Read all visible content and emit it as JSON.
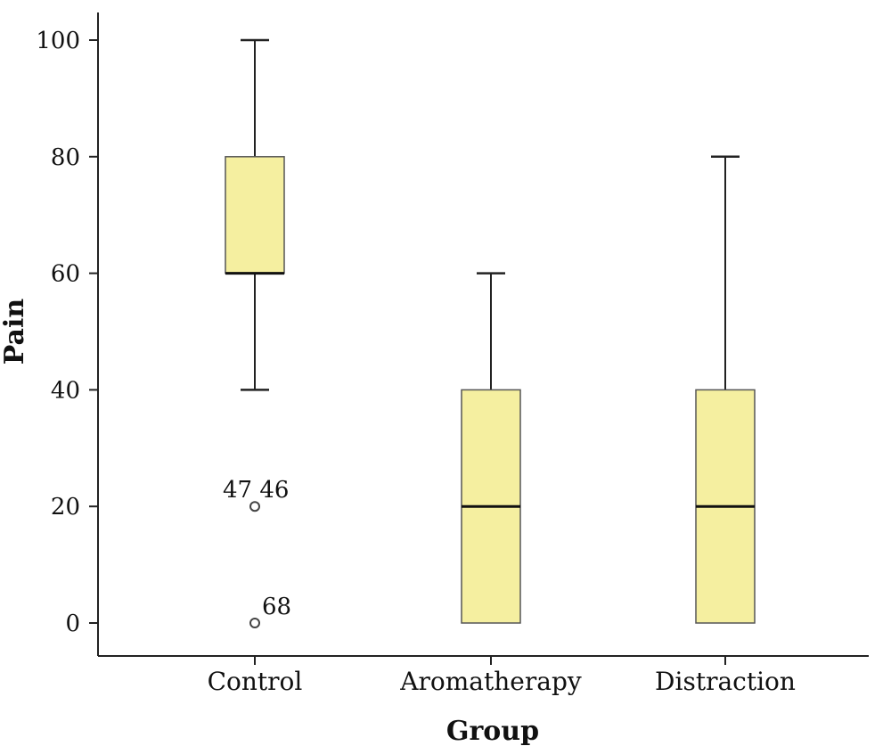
{
  "colors": {
    "box_fill": "#F5EFA0",
    "box_stroke": "#555555",
    "median": "#111111",
    "whisker": "#222222",
    "axis": "#222222"
  },
  "chart_data": {
    "type": "box",
    "title": "",
    "xlabel": "Group",
    "ylabel": "Pain",
    "ylim": [
      -5,
      105
    ],
    "yticks": [
      0,
      20,
      40,
      60,
      80,
      100
    ],
    "grid": false,
    "categories": [
      "Control",
      "Aromatherapy",
      "Distraction"
    ],
    "boxes": [
      {
        "category": "Control",
        "min": 40,
        "q1": 60,
        "median": 60,
        "q3": 80,
        "max": 100,
        "outliers": [
          {
            "value": 20,
            "label": "47 46"
          },
          {
            "value": 0,
            "label": "68"
          }
        ]
      },
      {
        "category": "Aromatherapy",
        "min": 0,
        "q1": 0,
        "median": 20,
        "q3": 40,
        "max": 60,
        "outliers": []
      },
      {
        "category": "Distraction",
        "min": 0,
        "q1": 0,
        "median": 20,
        "q3": 40,
        "max": 80,
        "outliers": []
      }
    ]
  }
}
